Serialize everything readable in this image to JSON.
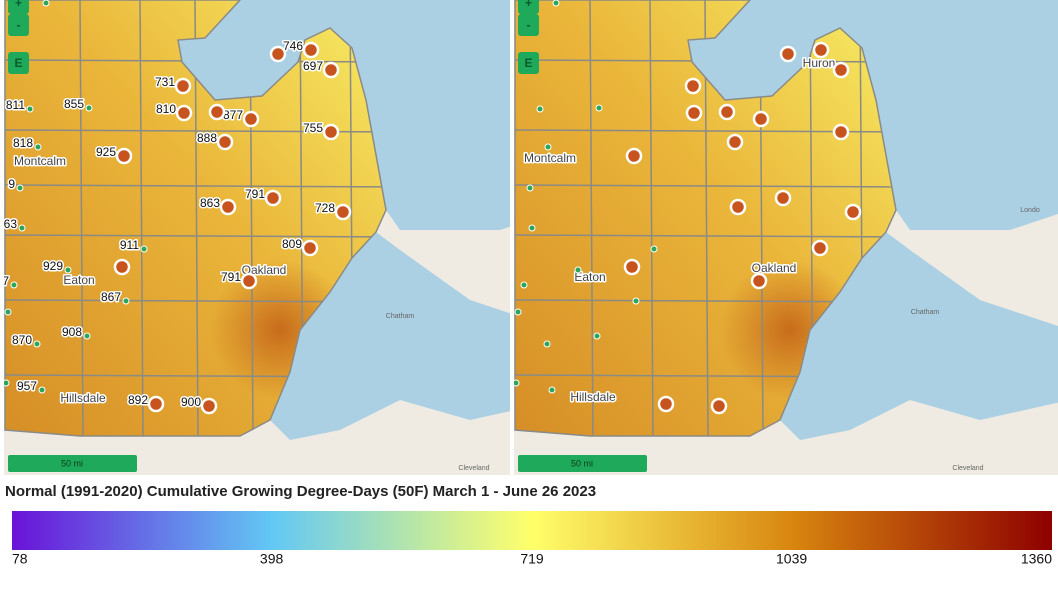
{
  "left_map": {
    "controls": [
      "+",
      "-",
      "E"
    ],
    "stations": [
      746,
      697,
      731,
      810,
      877,
      888,
      755,
      925,
      811,
      855,
      818,
      863,
      791,
      728,
      9,
      63,
      911,
      809,
      929,
      7,
      791,
      867,
      908,
      870,
      957,
      892,
      900
    ],
    "places": [
      "Montcalm",
      "Eaton",
      "Hillsdale",
      "Oakland"
    ],
    "scale": "50 mi",
    "basemap_labels": [
      "Chatham",
      "Cleveland"
    ]
  },
  "right_map": {
    "controls": [
      "+",
      "-",
      "E"
    ],
    "places": [
      "Huron",
      "Montcalm",
      "Eaton",
      "Oakland",
      "Hillsdale"
    ],
    "scale": "50 mi",
    "basemap_labels": [
      "Chatham",
      "Londo",
      "Cleveland"
    ]
  },
  "legend": {
    "title": "Normal (1991-2020) Cumulative Growing Degree-Days (50F) March 1 - June 26 2023",
    "ticks": [
      78,
      398,
      719,
      1039,
      1360
    ],
    "colors": [
      "#6a12d8",
      "#62c8f4",
      "#ffff6a",
      "#d8860f",
      "#8e0000"
    ]
  }
}
